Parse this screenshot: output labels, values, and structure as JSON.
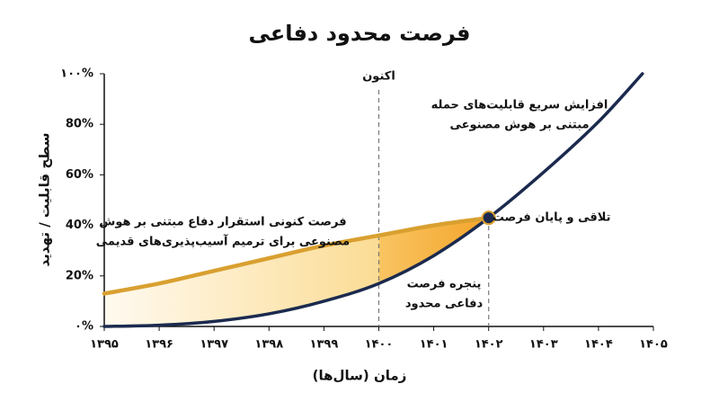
{
  "chart_data": {
    "type": "line",
    "title": "فرصت محدود دفاعی",
    "x_label": "زمان (سال‌ها)",
    "y_label": "سطح قابلیت / تهدید",
    "xlim": [
      1395,
      1405
    ],
    "ylim": [
      0,
      100
    ],
    "xticks": [
      {
        "value": 1395,
        "label": "۱۳۹۵"
      },
      {
        "value": 1396,
        "label": "۱۳۹۶"
      },
      {
        "value": 1397,
        "label": "۱۳۹۷"
      },
      {
        "value": 1398,
        "label": "۱۳۹۸"
      },
      {
        "value": 1399,
        "label": "۱۳۹۹"
      },
      {
        "value": 1400,
        "label": "۱۴۰۰"
      },
      {
        "value": 1401,
        "label": "۱۴۰۱"
      },
      {
        "value": 1402,
        "label": "۱۴۰۲"
      },
      {
        "value": 1403,
        "label": "۱۴۰۳"
      },
      {
        "value": 1404,
        "label": "۱۴۰۴"
      },
      {
        "value": 1405,
        "label": "۱۴۰۵"
      }
    ],
    "yticks": [
      {
        "value": 0,
        "label": "۰%"
      },
      {
        "value": 20,
        "label": "20%"
      },
      {
        "value": 40,
        "label": "40%"
      },
      {
        "value": 60,
        "label": "60%"
      },
      {
        "value": 80,
        "label": "80%"
      },
      {
        "value": 100,
        "label": "۱۰۰%"
      }
    ],
    "series": [
      {
        "color": "#d9a030",
        "x": [
          1395,
          1396,
          1397,
          1398,
          1399,
          1400,
          1401,
          1402
        ],
        "values": [
          13,
          17,
          22,
          27,
          32,
          36,
          40,
          43
        ],
        "label_lines": [
          "فرصت کنونی استقرار دفاع مبتنی بر هوش",
          "مصنوعی برای ترمیم آسیب‌پذیری‌های قدیمی"
        ]
      },
      {
        "color": "#1b2a4e",
        "x": [
          1395,
          1396,
          1397,
          1398,
          1399,
          1400,
          1401,
          1402,
          1403,
          1404,
          1404.8
        ],
        "values": [
          0,
          0.5,
          2,
          5,
          10,
          17,
          28,
          43,
          61,
          81,
          100
        ],
        "label_lines": [
          "افزایش سریع قابلیت‌های حمله",
          "مبتنی بر هوش مصنوعی"
        ]
      }
    ],
    "now_line": {
      "x": 1400,
      "label": "اکنون"
    },
    "intersection": {
      "x": 1402,
      "y": 43,
      "label": "تلاقی و پایان فرصت"
    },
    "window_label_lines": [
      "پنجره فرصت",
      "دفاعی محدود"
    ]
  }
}
